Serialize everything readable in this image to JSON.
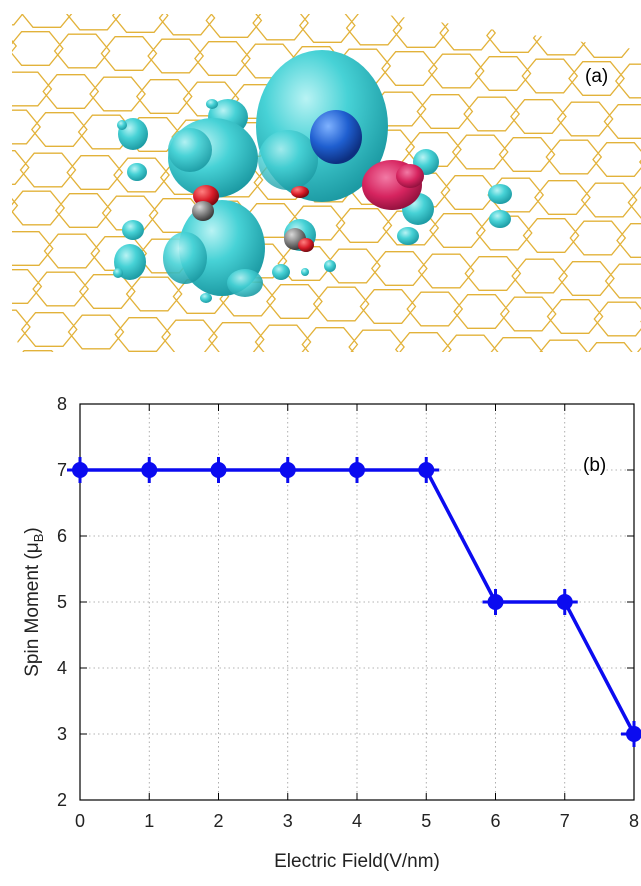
{
  "panel_a": {
    "label": "(a)",
    "colors": {
      "lattice": "#e2b23a",
      "isosurface_positive": "#39c9cf",
      "isosurface_negative": "#d6245f",
      "central_atom": "#1f5fd0",
      "oxygen": "#d81b28",
      "carbon": "#777777"
    }
  },
  "chart_data": {
    "type": "line",
    "panel_label": "(b)",
    "title": "",
    "xlabel": "Electric Field(V/nm)",
    "ylabel_main": "Spin Moment (μ",
    "ylabel_sub": "B",
    "ylabel_close": ")",
    "xlim": [
      0,
      8
    ],
    "ylim": [
      2,
      8
    ],
    "xticks": [
      "0",
      "1",
      "2",
      "3",
      "4",
      "5",
      "6",
      "7",
      "8"
    ],
    "yticks": [
      "2",
      "3",
      "4",
      "5",
      "6",
      "7",
      "8"
    ],
    "grid": true,
    "series": [
      {
        "color": "#0b0bf0",
        "x": [
          0,
          1,
          2,
          3,
          4,
          5,
          6,
          7,
          8
        ],
        "y": [
          7,
          7,
          7,
          7,
          7,
          7,
          5,
          5,
          3
        ]
      }
    ]
  }
}
